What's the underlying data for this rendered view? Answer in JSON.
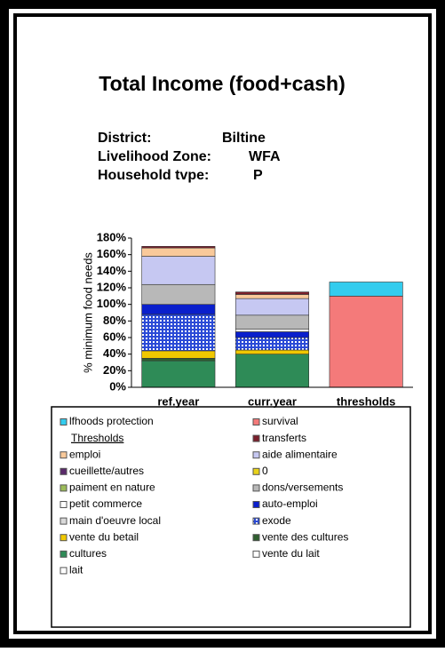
{
  "chart_data": {
    "type": "bar",
    "stacked": true,
    "title": "Total Income (food+cash)",
    "info": [
      {
        "label": "District:",
        "value": "Biltine"
      },
      {
        "label": "Livelihood Zone:",
        "value": "WFA"
      },
      {
        "label": "Household tvpe:",
        "value": "P"
      }
    ],
    "ylabel": "% minimum food needs",
    "categories": [
      "ref.year",
      "curr.year",
      "thresholds"
    ],
    "ylim": [
      0,
      180
    ],
    "yticks": [
      {
        "value": 0,
        "label": "0%"
      },
      {
        "value": 20,
        "label": "20%"
      },
      {
        "value": 40,
        "label": "40%"
      },
      {
        "value": 60,
        "label": "60%"
      },
      {
        "value": 80,
        "label": "80%"
      },
      {
        "value": 100,
        "label": "100%"
      },
      {
        "value": 120,
        "label": "120%"
      },
      {
        "value": 140,
        "label": "140%"
      },
      {
        "value": 160,
        "label": "160%"
      },
      {
        "value": 180,
        "label": "180%"
      }
    ],
    "legend_heading": "Thresholds",
    "series": [
      {
        "name": "lfhoods protection",
        "color": "#33ccee",
        "values": [
          0,
          0,
          17
        ]
      },
      {
        "name": "survival",
        "color": "#f47a7a",
        "values": [
          0,
          0,
          110
        ]
      },
      {
        "name": "transferts",
        "color": "#7a1f2b",
        "values": [
          2,
          3,
          0
        ]
      },
      {
        "name": "emploi",
        "color": "#f9c99a",
        "values": [
          10,
          5,
          0
        ]
      },
      {
        "name": "aide alimentaire",
        "color": "#c6c8f2",
        "values": [
          34,
          20,
          0
        ]
      },
      {
        "name": "cueillette/autres",
        "color": "#5a2a6a",
        "values": [
          0,
          0,
          0
        ]
      },
      {
        "name": "0",
        "color": "#e8d21a",
        "values": [
          0,
          0,
          0
        ]
      },
      {
        "name": "paiment en nature",
        "color": "#9bbb59",
        "values": [
          0,
          0,
          0
        ]
      },
      {
        "name": "dons/versements",
        "color": "#b8b8b8",
        "values": [
          24,
          17,
          0
        ]
      },
      {
        "name": "petit commerce",
        "color": "#ffffff",
        "values": [
          0,
          3,
          0
        ]
      },
      {
        "name": "auto-emploi",
        "color": "#0a1fcc",
        "values": [
          12,
          7,
          0
        ]
      },
      {
        "name": "main d'oeuvre local",
        "color": "#d9d9d9",
        "values": [
          0,
          0,
          0
        ]
      },
      {
        "name": "exode",
        "color": "#2a4ad6",
        "pattern": "dots",
        "values": [
          44,
          15,
          0
        ]
      },
      {
        "name": "vente du betail",
        "color": "#f0c800",
        "values": [
          9,
          5,
          0
        ]
      },
      {
        "name": "vente des cultures",
        "color": "#2f5f2f",
        "values": [
          3,
          0,
          0
        ]
      },
      {
        "name": "cultures",
        "color": "#2e8b57",
        "values": [
          32,
          40,
          0
        ]
      },
      {
        "name": "vente du lait",
        "color": "#ffffff",
        "values": [
          0,
          0,
          0
        ]
      },
      {
        "name": "lait",
        "color": "#ffffff",
        "values": [
          0,
          0,
          0
        ]
      }
    ]
  }
}
